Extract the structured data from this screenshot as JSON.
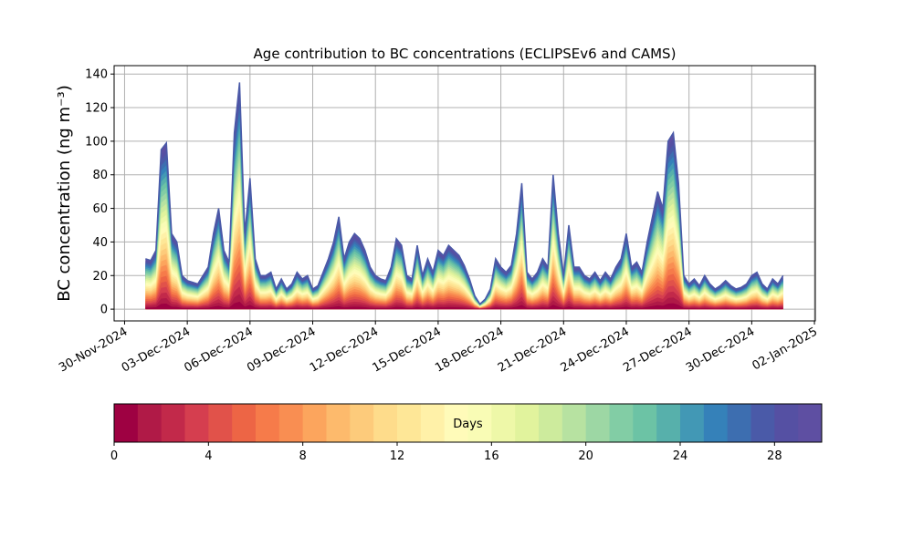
{
  "chart_data": {
    "type": "age-stack",
    "title": "Age contribution to BC concentrations (ECLIPSEv6 and CAMS)",
    "y_label": "BC concentration (ng m⁻³)",
    "x": [
      "2024-12-01T00:00",
      "2024-12-01T06:00",
      "2024-12-01T12:00",
      "2024-12-01T18:00",
      "2024-12-02T00:00",
      "2024-12-02T06:00",
      "2024-12-02T12:00",
      "2024-12-02T18:00",
      "2024-12-03T00:00",
      "2024-12-03T06:00",
      "2024-12-03T12:00",
      "2024-12-03T18:00",
      "2024-12-04T00:00",
      "2024-12-04T06:00",
      "2024-12-04T12:00",
      "2024-12-04T18:00",
      "2024-12-05T00:00",
      "2024-12-05T06:00",
      "2024-12-05T12:00",
      "2024-12-05T18:00",
      "2024-12-06T00:00",
      "2024-12-06T06:00",
      "2024-12-06T12:00",
      "2024-12-06T18:00",
      "2024-12-07T00:00",
      "2024-12-07T06:00",
      "2024-12-07T12:00",
      "2024-12-07T18:00",
      "2024-12-08T00:00",
      "2024-12-08T06:00",
      "2024-12-08T12:00",
      "2024-12-08T18:00",
      "2024-12-09T00:00",
      "2024-12-09T06:00",
      "2024-12-09T12:00",
      "2024-12-09T18:00",
      "2024-12-10T00:00",
      "2024-12-10T06:00",
      "2024-12-10T12:00",
      "2024-12-10T18:00",
      "2024-12-11T00:00",
      "2024-12-11T06:00",
      "2024-12-11T12:00",
      "2024-12-11T18:00",
      "2024-12-12T00:00",
      "2024-12-12T06:00",
      "2024-12-12T12:00",
      "2024-12-12T18:00",
      "2024-12-13T00:00",
      "2024-12-13T06:00",
      "2024-12-13T12:00",
      "2024-12-13T18:00",
      "2024-12-14T00:00",
      "2024-12-14T06:00",
      "2024-12-14T12:00",
      "2024-12-14T18:00",
      "2024-12-15T00:00",
      "2024-12-15T06:00",
      "2024-12-15T12:00",
      "2024-12-15T18:00",
      "2024-12-16T00:00",
      "2024-12-16T06:00",
      "2024-12-16T12:00",
      "2024-12-16T18:00",
      "2024-12-17T00:00",
      "2024-12-17T06:00",
      "2024-12-17T12:00",
      "2024-12-17T18:00",
      "2024-12-18T00:00",
      "2024-12-18T06:00",
      "2024-12-18T12:00",
      "2024-12-18T18:00",
      "2024-12-19T00:00",
      "2024-12-19T06:00",
      "2024-12-19T12:00",
      "2024-12-19T18:00",
      "2024-12-20T00:00",
      "2024-12-20T06:00",
      "2024-12-20T12:00",
      "2024-12-20T18:00",
      "2024-12-21T00:00",
      "2024-12-21T06:00",
      "2024-12-21T12:00",
      "2024-12-21T18:00",
      "2024-12-22T00:00",
      "2024-12-22T06:00",
      "2024-12-22T12:00",
      "2024-12-22T18:00",
      "2024-12-23T00:00",
      "2024-12-23T06:00",
      "2024-12-23T12:00",
      "2024-12-23T18:00",
      "2024-12-24T00:00",
      "2024-12-24T06:00",
      "2024-12-24T12:00",
      "2024-12-24T18:00",
      "2024-12-25T00:00",
      "2024-12-25T06:00",
      "2024-12-25T12:00",
      "2024-12-25T18:00",
      "2024-12-26T00:00",
      "2024-12-26T06:00",
      "2024-12-26T12:00",
      "2024-12-26T18:00",
      "2024-12-27T00:00",
      "2024-12-27T06:00",
      "2024-12-27T12:00",
      "2024-12-27T18:00",
      "2024-12-28T00:00",
      "2024-12-28T06:00",
      "2024-12-28T12:00",
      "2024-12-28T18:00",
      "2024-12-29T00:00",
      "2024-12-29T06:00",
      "2024-12-29T12:00",
      "2024-12-29T18:00",
      "2024-12-30T00:00",
      "2024-12-30T06:00",
      "2024-12-30T12:00",
      "2024-12-30T18:00",
      "2024-12-31T00:00",
      "2024-12-31T06:00",
      "2024-12-31T12:00"
    ],
    "values": [
      30,
      29,
      35,
      95,
      99,
      45,
      40,
      20,
      17,
      16,
      15,
      20,
      25,
      45,
      60,
      35,
      28,
      105,
      135,
      45,
      78,
      30,
      20,
      20,
      22,
      12,
      18,
      12,
      15,
      22,
      18,
      20,
      12,
      14,
      22,
      30,
      40,
      55,
      30,
      40,
      45,
      42,
      35,
      25,
      20,
      18,
      17,
      25,
      42,
      38,
      20,
      18,
      38,
      20,
      30,
      22,
      35,
      32,
      38,
      35,
      32,
      26,
      18,
      8,
      3,
      6,
      12,
      30,
      25,
      22,
      26,
      45,
      75,
      22,
      18,
      22,
      30,
      25,
      80,
      45,
      20,
      50,
      25,
      25,
      20,
      18,
      22,
      17,
      22,
      18,
      25,
      30,
      45,
      25,
      28,
      22,
      40,
      55,
      70,
      60,
      100,
      105,
      75,
      20,
      15,
      18,
      14,
      20,
      15,
      12,
      14,
      17,
      14,
      12,
      13,
      15,
      20,
      22,
      15,
      12,
      18,
      15,
      20
    ],
    "line_color": "#4a5aa8",
    "xlim": [
      "2024-11-29T12:00",
      "2025-01-02T01:00"
    ],
    "xticks": [
      {
        "value": "2024-11-30",
        "label": "30-Nov-2024"
      },
      {
        "value": "2024-12-03",
        "label": "03-Dec-2024"
      },
      {
        "value": "2024-12-06",
        "label": "06-Dec-2024"
      },
      {
        "value": "2024-12-09",
        "label": "09-Dec-2024"
      },
      {
        "value": "2024-12-12",
        "label": "12-Dec-2024"
      },
      {
        "value": "2024-12-15",
        "label": "15-Dec-2024"
      },
      {
        "value": "2024-12-18",
        "label": "18-Dec-2024"
      },
      {
        "value": "2024-12-21",
        "label": "21-Dec-2024"
      },
      {
        "value": "2024-12-24",
        "label": "24-Dec-2024"
      },
      {
        "value": "2024-12-27",
        "label": "27-Dec-2024"
      },
      {
        "value": "2024-12-30",
        "label": "30-Dec-2024"
      },
      {
        "value": "2025-01-02",
        "label": "02-Jan-2025"
      }
    ],
    "ylim": [
      -7,
      145
    ],
    "yticks": [
      0,
      20,
      40,
      60,
      80,
      100,
      120,
      140
    ],
    "grid": true,
    "colorbar": {
      "label": "Days",
      "clim": [
        0,
        30
      ],
      "ticks": [
        0,
        4,
        8,
        12,
        16,
        20,
        24,
        28
      ],
      "colors": [
        "#9e0142",
        "#b01a47",
        "#c2294a",
        "#d53e4f",
        "#e1524a",
        "#ed6545",
        "#f67b4a",
        "#f98e52",
        "#fca55d",
        "#fdba6c",
        "#fdcb7b",
        "#fedc8b",
        "#fee797",
        "#fff1a8",
        "#fffbb9",
        "#f9fcb5",
        "#eef8a8",
        "#e1f39d",
        "#cdeb9d",
        "#b7e2a1",
        "#9dd7a4",
        "#82cda5",
        "#6cc3a5",
        "#57b0ab",
        "#4298b5",
        "#3581b9",
        "#3d6eb0",
        "#4a5aa8",
        "#5550a3",
        "#5e4fa2"
      ]
    }
  }
}
